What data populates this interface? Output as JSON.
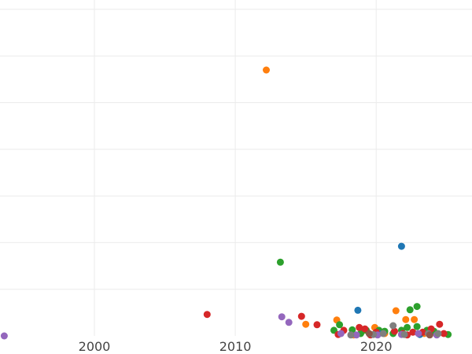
{
  "chart_data": {
    "type": "scatter",
    "title": "",
    "xlabel": "",
    "ylabel": "",
    "xlim": [
      1993.3,
      2026.8
    ],
    "ylim": [
      0,
      7.2
    ],
    "grid": true,
    "x_ticks": [
      {
        "value": 2000,
        "label": "2000"
      },
      {
        "value": 2010,
        "label": "2010"
      },
      {
        "value": 2020,
        "label": "2020"
      }
    ],
    "y_gridlines": [
      1,
      2,
      3,
      4,
      5,
      6,
      7
    ],
    "series": [
      {
        "color": "#ff7f0e",
        "points": [
          [
            2012.2,
            5.7
          ],
          [
            2015.0,
            0.25
          ],
          [
            2017.2,
            0.34
          ],
          [
            2019.0,
            0.1
          ],
          [
            2019.9,
            0.18
          ],
          [
            2020.6,
            0.05
          ],
          [
            2021.4,
            0.54
          ],
          [
            2022.1,
            0.35
          ],
          [
            2022.7,
            0.35
          ],
          [
            2023.4,
            0.05
          ],
          [
            2024.0,
            0.08
          ],
          [
            2018.4,
            0.02
          ]
        ]
      },
      {
        "color": "#2ca02c",
        "points": [
          [
            2013.2,
            1.58
          ],
          [
            2017.0,
            0.12
          ],
          [
            2017.4,
            0.24
          ],
          [
            2018.3,
            0.13
          ],
          [
            2019.3,
            0.12
          ],
          [
            2020.2,
            0.12
          ],
          [
            2020.6,
            0.1
          ],
          [
            2021.8,
            0.12
          ],
          [
            2022.2,
            0.18
          ],
          [
            2022.4,
            0.56
          ],
          [
            2022.9,
            0.63
          ],
          [
            2022.9,
            0.2
          ],
          [
            2023.6,
            0.12
          ],
          [
            2024.1,
            0.1
          ],
          [
            2025.1,
            0.03
          ],
          [
            2018.9,
            0.05
          ],
          [
            2021.2,
            0.05
          ]
        ]
      },
      {
        "color": "#1f77b4",
        "points": [
          [
            2021.8,
            1.92
          ],
          [
            2018.7,
            0.55
          ],
          [
            2020.2,
            0.05
          ],
          [
            2023.1,
            0.03
          ]
        ]
      },
      {
        "color": "#d62728",
        "points": [
          [
            2008.0,
            0.46
          ],
          [
            2014.7,
            0.42
          ],
          [
            2015.8,
            0.24
          ],
          [
            2017.7,
            0.12
          ],
          [
            2018.8,
            0.18
          ],
          [
            2019.2,
            0.15
          ],
          [
            2020.0,
            0.08
          ],
          [
            2021.3,
            0.1
          ],
          [
            2021.9,
            0.05
          ],
          [
            2022.6,
            0.08
          ],
          [
            2023.3,
            0.08
          ],
          [
            2023.9,
            0.15
          ],
          [
            2024.5,
            0.25
          ],
          [
            2024.8,
            0.05
          ],
          [
            2019.6,
            0.02
          ],
          [
            2022.2,
            0.02
          ],
          [
            2017.3,
            0.03
          ]
        ]
      },
      {
        "color": "#9467bd",
        "points": [
          [
            1993.6,
            0.0
          ],
          [
            2013.3,
            0.41
          ],
          [
            2013.8,
            0.29
          ],
          [
            2017.5,
            0.05
          ],
          [
            2018.6,
            0.02
          ],
          [
            2020.1,
            0.02
          ],
          [
            2021.8,
            0.03
          ],
          [
            2023.0,
            0.05
          ],
          [
            2024.3,
            0.02
          ]
        ]
      },
      {
        "color": "#7f7f7f",
        "points": [
          [
            2018.2,
            0.02
          ],
          [
            2019.8,
            0.03
          ],
          [
            2020.5,
            0.05
          ],
          [
            2021.2,
            0.22
          ],
          [
            2022.0,
            0.03
          ],
          [
            2023.7,
            0.05
          ],
          [
            2024.4,
            0.05
          ]
        ]
      },
      {
        "color": "#8c564b",
        "points": [
          [
            2019.5,
            0.05
          ],
          [
            2023.8,
            0.02
          ]
        ]
      }
    ]
  }
}
